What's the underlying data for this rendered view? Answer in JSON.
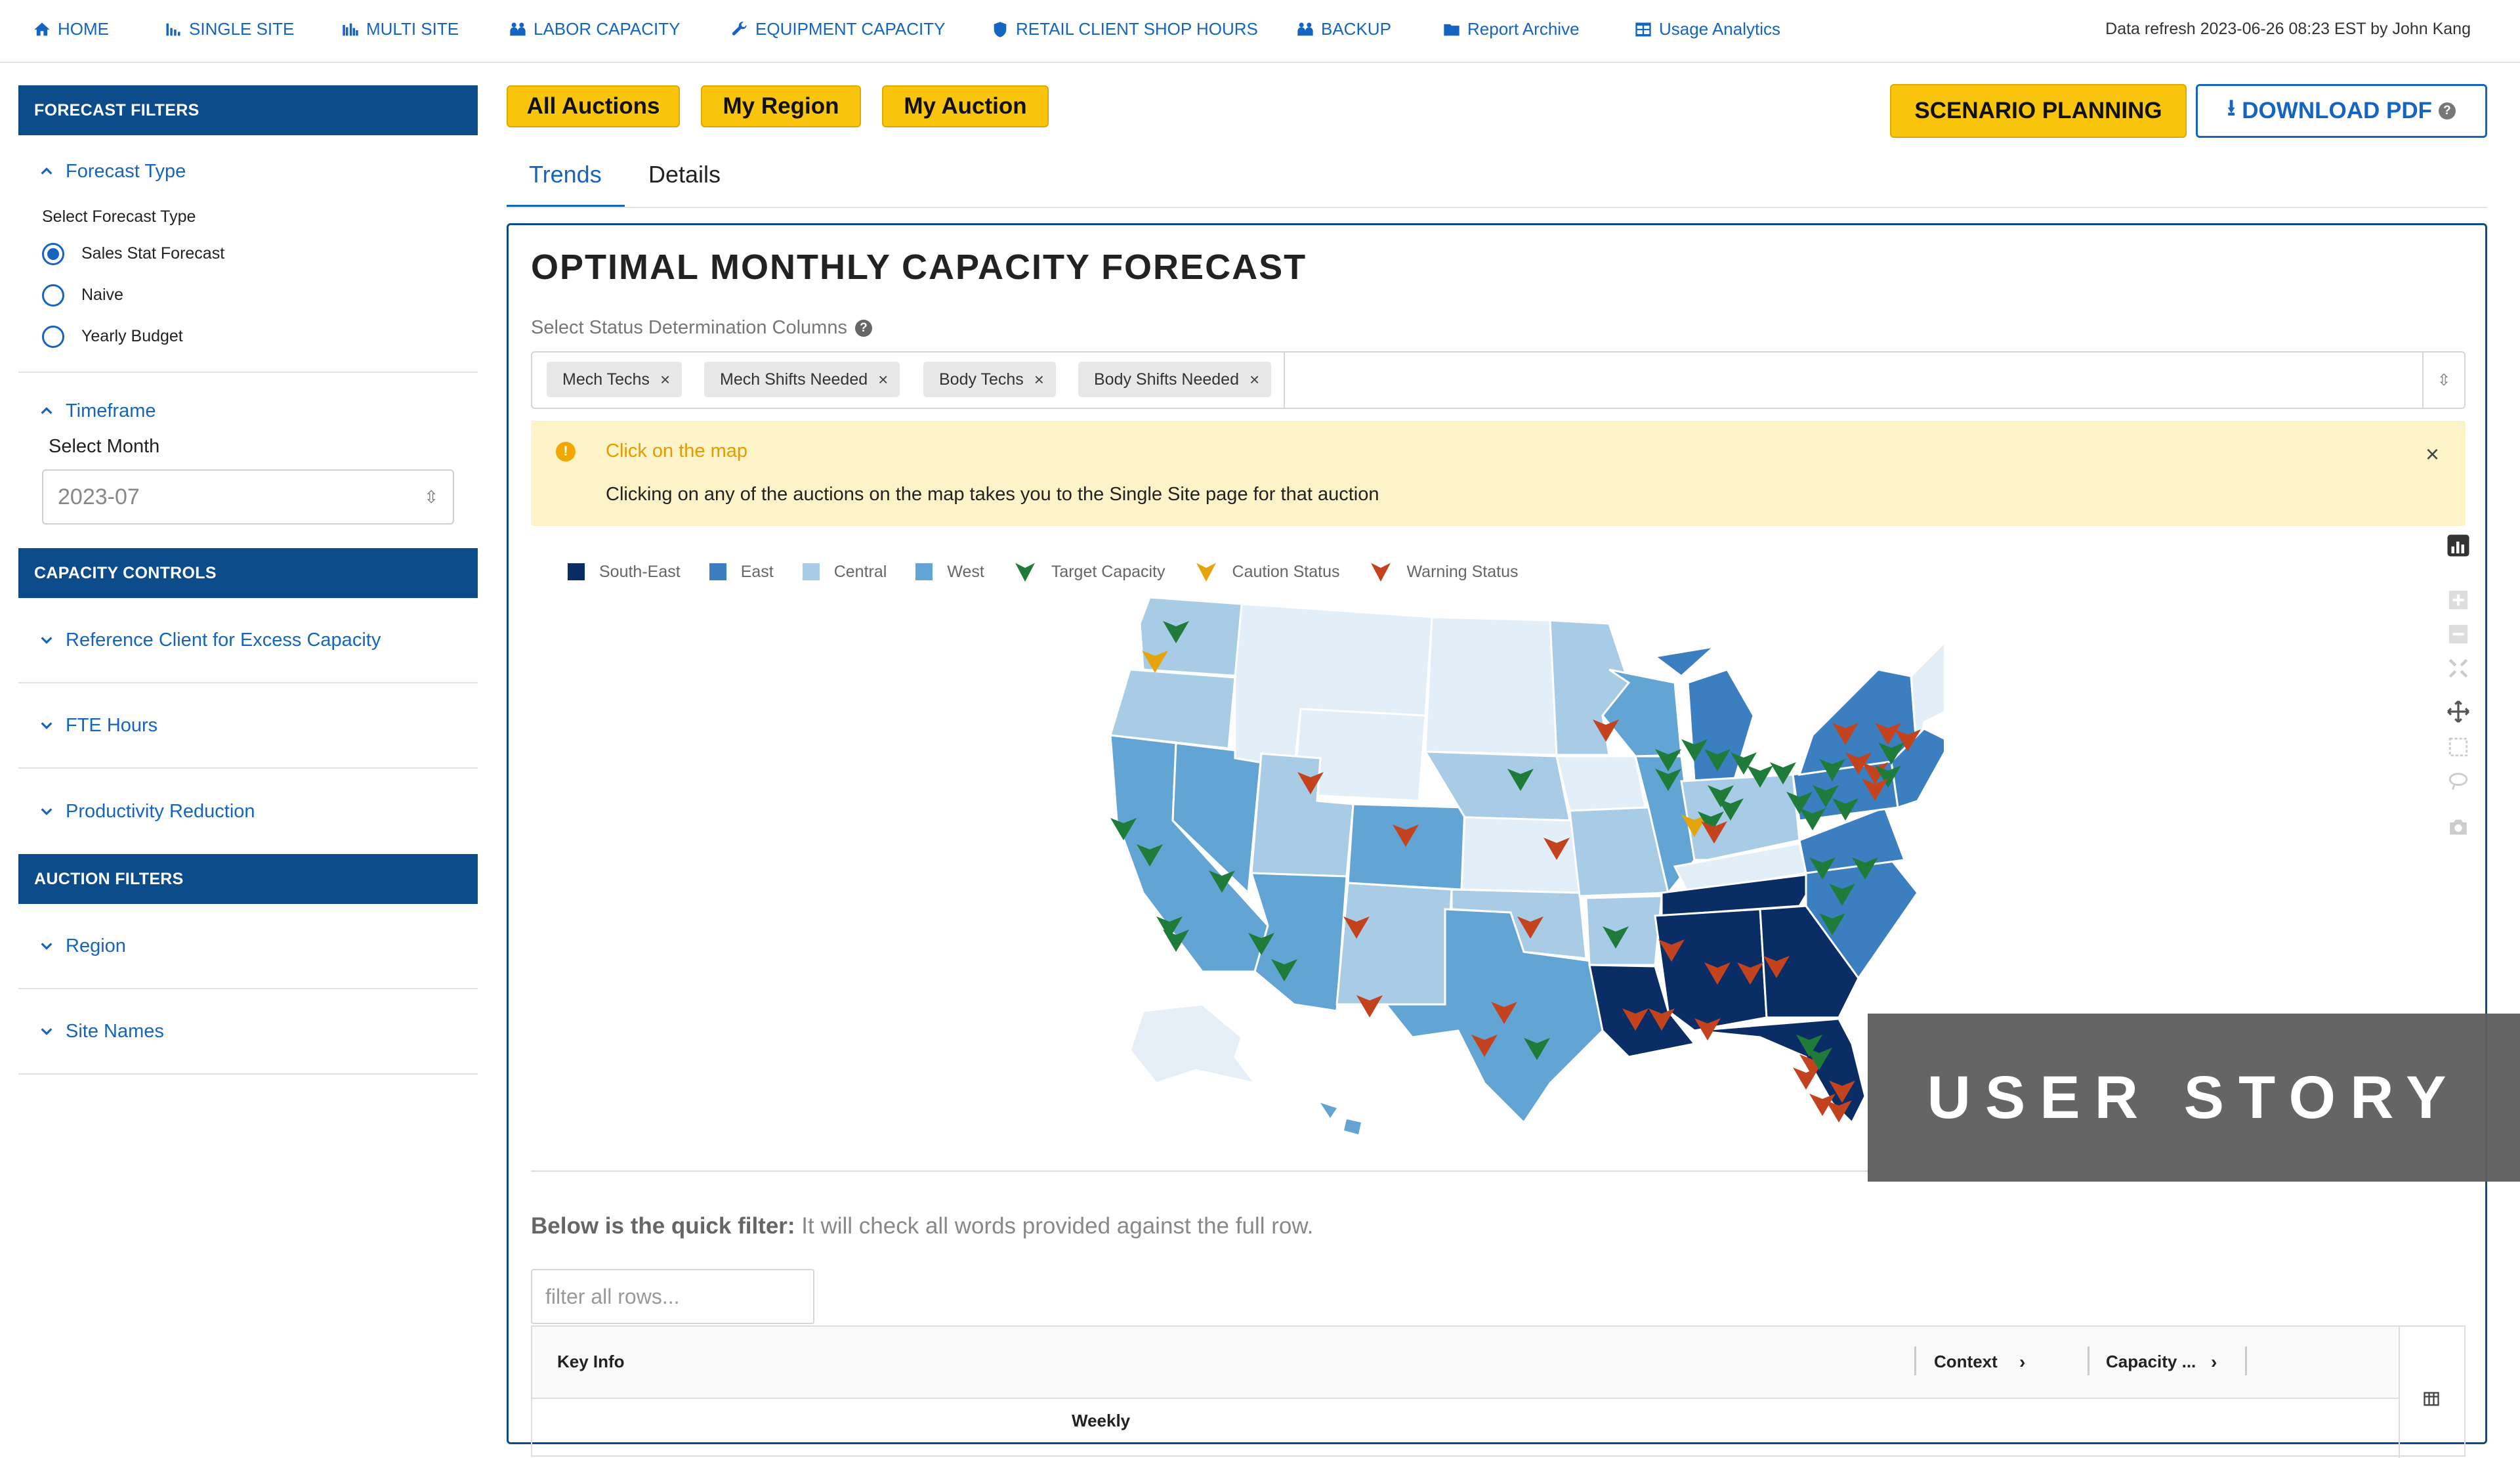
{
  "nav": {
    "items": [
      "HOME",
      "SINGLE SITE",
      "MULTI SITE",
      "LABOR CAPACITY",
      "EQUIPMENT CAPACITY",
      "RETAIL CLIENT SHOP HOURS",
      "BACKUP",
      "Report Archive",
      "Usage Analytics"
    ],
    "refresh": "Data refresh 2023-06-26 08:23 EST by John Kang"
  },
  "sidebar": {
    "forecast_filters": "FORECAST FILTERS",
    "forecast_type": "Forecast Type",
    "select_forecast_type": "Select Forecast Type",
    "radios": [
      "Sales Stat Forecast",
      "Naive",
      "Yearly Budget"
    ],
    "selected_radio": "Sales Stat Forecast",
    "timeframe": "Timeframe",
    "select_month": "Select Month",
    "month_value": "2023-07",
    "capacity_controls": "CAPACITY CONTROLS",
    "capacity_items": [
      "Reference Client for Excess Capacity",
      "FTE Hours",
      "Productivity Reduction"
    ],
    "auction_filters": "AUCTION FILTERS",
    "auction_items": [
      "Region",
      "Site Names"
    ]
  },
  "toolbar": {
    "scope_buttons": [
      "All Auctions",
      "My Region",
      "My Auction"
    ],
    "scenario": "SCENARIO PLANNING",
    "download": "DOWNLOAD PDF"
  },
  "tabs": [
    "Trends",
    "Details"
  ],
  "active_tab": "Trends",
  "panel": {
    "title": "OPTIMAL MONTHLY CAPACITY FORECAST",
    "status_label": "Select Status Determination Columns",
    "chips": [
      "Mech Techs",
      "Mech Shifts Needed",
      "Body Techs",
      "Body Shifts Needed"
    ],
    "info_title": "Click on the map",
    "info_text": "Clicking on any of the auctions on the map takes you to the Single Site page for that auction",
    "legend": [
      {
        "label": "South-East",
        "color": "#0b2d66",
        "type": "square"
      },
      {
        "label": "East",
        "color": "#3b7fc1",
        "type": "square"
      },
      {
        "label": "Central",
        "color": "#a9cce6",
        "type": "square"
      },
      {
        "label": "West",
        "color": "#62a4d4",
        "type": "square"
      },
      {
        "label": "Target Capacity",
        "color": "#1e7b3a",
        "type": "marker"
      },
      {
        "label": "Caution Status",
        "color": "#e5a50a",
        "type": "marker"
      },
      {
        "label": "Warning Status",
        "color": "#c4431f",
        "type": "marker"
      }
    ],
    "quick_filter_bold": "Below is the quick filter:",
    "quick_filter_text": " It will check all words provided against the full row.",
    "filter_placeholder": "filter all rows...",
    "grid_headers": [
      "Key Info",
      "Context",
      "Capacity ..."
    ],
    "grid_subheader": "Weekly"
  },
  "overlay": "USER STORY"
}
